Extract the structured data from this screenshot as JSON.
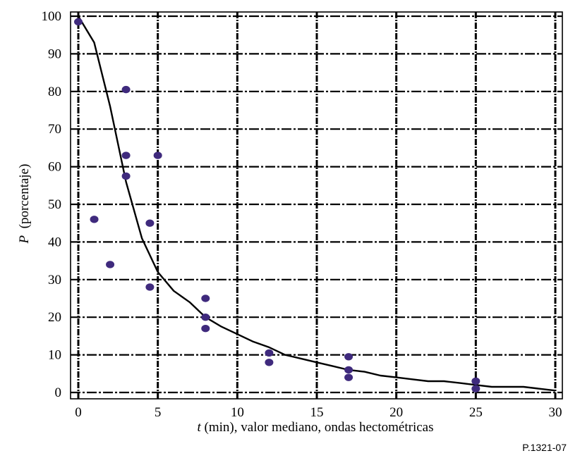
{
  "chart_data": {
    "type": "scatter",
    "xlabel_var": "t",
    "xlabel_rest": " (min), valor mediano, ondas hectométricas",
    "ylabel_var": "P",
    "ylabel_rest": "  (porcentaje)",
    "figure_code": "P.1321-07",
    "xlim": [
      0,
      30
    ],
    "ylim": [
      0,
      100
    ],
    "x_ticks": [
      0,
      5,
      10,
      15,
      20,
      25,
      30
    ],
    "y_ticks": [
      0,
      10,
      20,
      30,
      40,
      50,
      60,
      70,
      80,
      90,
      100
    ],
    "x_grid": [
      0,
      5,
      10,
      15,
      20,
      25,
      30
    ],
    "y_grid": [
      0,
      10,
      20,
      30,
      40,
      50,
      60,
      70,
      80,
      90,
      100
    ],
    "grid": true,
    "series": [
      {
        "kind": "points",
        "color": "#3f2a7d",
        "points": [
          [
            0,
            98.5
          ],
          [
            1,
            46
          ],
          [
            2,
            34
          ],
          [
            3,
            80.5
          ],
          [
            3,
            63
          ],
          [
            3,
            57.5
          ],
          [
            4.5,
            45
          ],
          [
            4.5,
            28
          ],
          [
            5,
            63
          ],
          [
            8,
            25
          ],
          [
            8,
            20
          ],
          [
            8,
            17
          ],
          [
            12,
            10.5
          ],
          [
            12,
            8
          ],
          [
            17,
            9.5
          ],
          [
            17,
            6
          ],
          [
            17,
            4
          ],
          [
            25,
            3
          ],
          [
            25,
            1
          ]
        ]
      },
      {
        "kind": "curve",
        "color": "#000000",
        "points": [
          [
            0,
            100
          ],
          [
            1,
            93
          ],
          [
            2,
            76
          ],
          [
            3,
            56
          ],
          [
            4,
            41
          ],
          [
            5,
            32
          ],
          [
            6,
            27
          ],
          [
            7,
            24
          ],
          [
            8,
            20
          ],
          [
            9,
            17.5
          ],
          [
            10,
            15.5
          ],
          [
            11,
            13.5
          ],
          [
            12,
            12
          ],
          [
            13,
            10
          ],
          [
            14,
            9
          ],
          [
            15,
            8
          ],
          [
            16,
            7
          ],
          [
            17,
            6
          ],
          [
            18,
            5.5
          ],
          [
            19,
            4.5
          ],
          [
            20,
            4
          ],
          [
            21,
            3.5
          ],
          [
            22,
            3
          ],
          [
            23,
            3
          ],
          [
            24,
            2.5
          ],
          [
            25,
            2
          ],
          [
            26,
            1.5
          ],
          [
            27,
            1.5
          ],
          [
            28,
            1.5
          ],
          [
            29,
            1
          ],
          [
            30,
            0.5
          ]
        ]
      }
    ]
  }
}
